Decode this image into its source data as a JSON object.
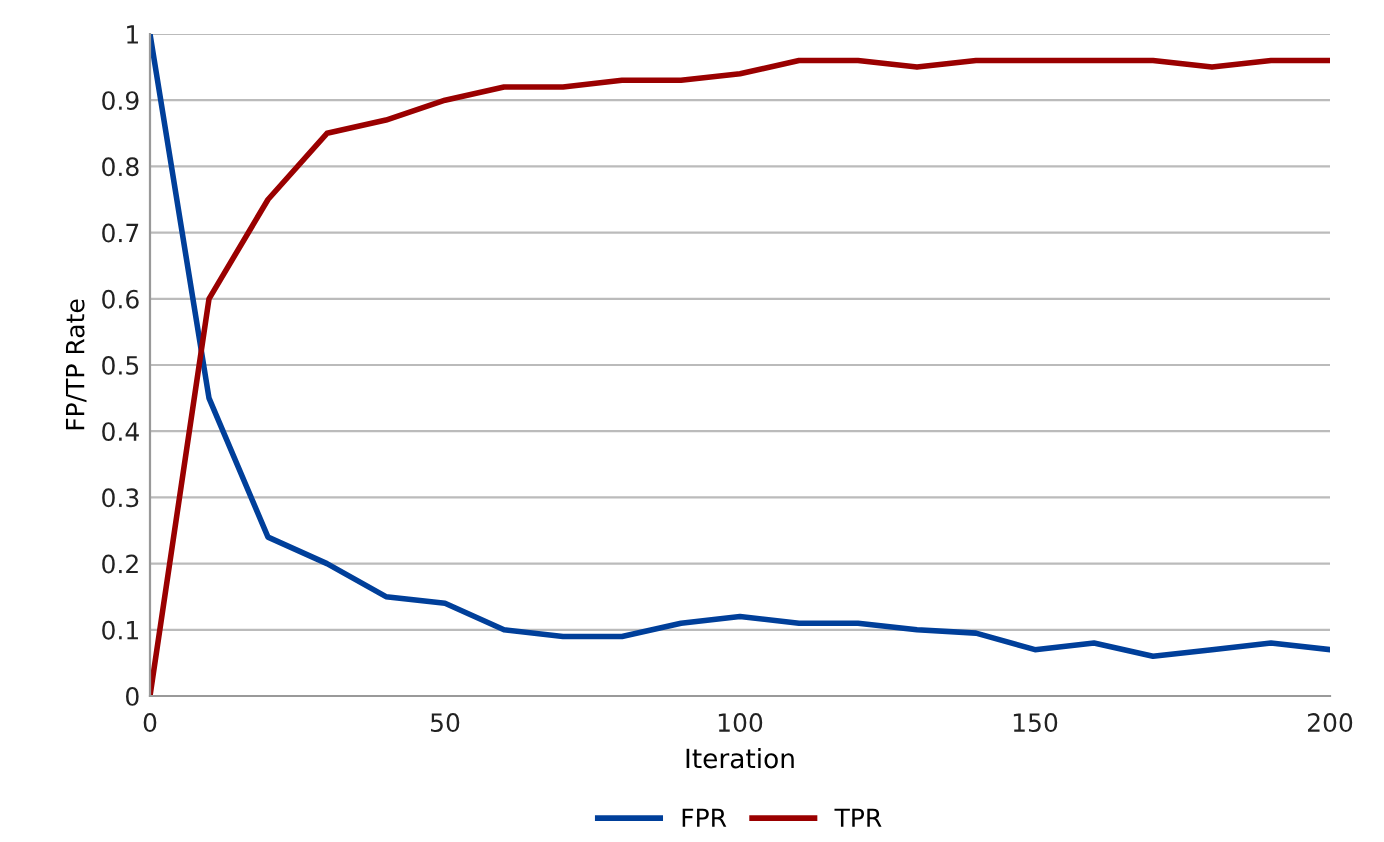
{
  "chart_data": {
    "type": "line",
    "xlabel": "Iteration",
    "ylabel": "FP/TP Rate",
    "x": [
      0,
      10,
      20,
      30,
      40,
      50,
      60,
      70,
      80,
      90,
      100,
      110,
      120,
      130,
      140,
      150,
      160,
      170,
      180,
      190,
      200
    ],
    "series": [
      {
        "name": "FPR",
        "color": "#003f9a",
        "values": [
          1,
          0.45,
          0.24,
          0.2,
          0.15,
          0.14,
          0.1,
          0.09,
          0.09,
          0.11,
          0.12,
          0.11,
          0.11,
          0.1,
          0.095,
          0.07,
          0.08,
          0.06,
          0.07,
          0.08,
          0.07
        ]
      },
      {
        "name": "TPR",
        "color": "#9a0000",
        "values": [
          0,
          0.6,
          0.75,
          0.85,
          0.87,
          0.9,
          0.92,
          0.92,
          0.93,
          0.93,
          0.94,
          0.96,
          0.96,
          0.95,
          0.96,
          0.96,
          0.96,
          0.96,
          0.95,
          0.96,
          0.96
        ]
      }
    ],
    "xlim": [
      0,
      200
    ],
    "xticks": [
      0,
      50,
      100,
      150,
      200
    ],
    "ylim": [
      0,
      1
    ],
    "yticks": [
      0,
      0.1,
      0.2,
      0.3,
      0.4,
      0.5,
      0.6,
      0.7,
      0.8,
      0.9,
      1
    ],
    "grid": "y",
    "legend": "bottom",
    "marker": "none",
    "line_style": "solid"
  }
}
